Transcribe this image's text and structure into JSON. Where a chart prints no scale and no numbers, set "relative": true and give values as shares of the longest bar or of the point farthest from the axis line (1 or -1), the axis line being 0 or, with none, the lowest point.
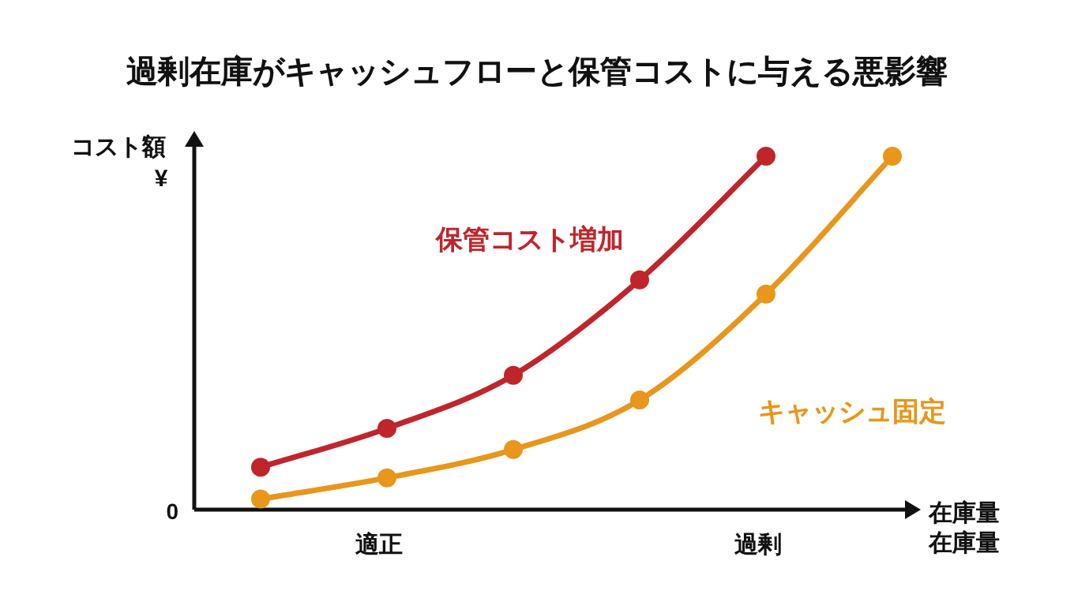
{
  "chart_data": {
    "type": "line",
    "title": "過剰在庫がキャッシュフローと保管コストに与える悪影響",
    "xlabel": "在庫量",
    "categories": [
      null,
      "適正",
      null,
      null,
      "過剰",
      null
    ],
    "ylabel": "コスト額\n¥",
    "relative": true,
    "marker": "circle",
    "line_style": "solid",
    "legend": false,
    "grid": false,
    "annotations": [
      "0",
      "在庫量"
    ],
    "series": [
      {
        "name": "保管コスト増加",
        "color": "#c0252c",
        "values": [
          0.12,
          0.23,
          0.38,
          0.65,
          1,
          null
        ]
      },
      {
        "name": "キャッシュ固定",
        "color": "#e8961c",
        "values": [
          0.03,
          0.09,
          0.17,
          0.31,
          0.61,
          1
        ]
      }
    ]
  }
}
